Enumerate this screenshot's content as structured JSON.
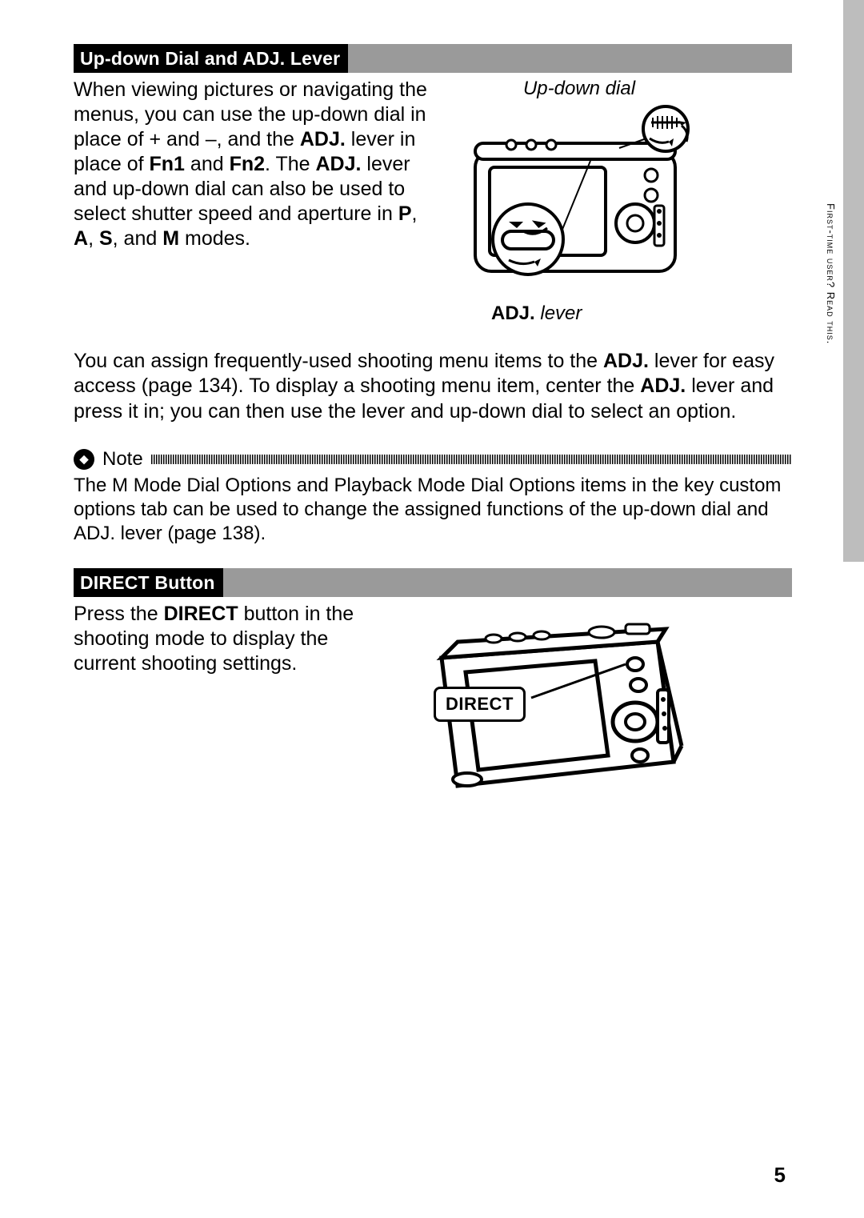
{
  "sidebar": {
    "tab_text": "First-time user? Read this."
  },
  "section1": {
    "title": "Up-down Dial and ADJ. Lever",
    "para1_parts": [
      {
        "t": "When viewing pictures or navigating the menus, you can use the up-down dial in place of + and –, and the ",
        "b": false
      },
      {
        "t": "ADJ.",
        "b": true
      },
      {
        "t": " lever in place of ",
        "b": false
      },
      {
        "t": "Fn1",
        "b": true
      },
      {
        "t": " and ",
        "b": false
      },
      {
        "t": "Fn2",
        "b": true
      },
      {
        "t": ". The ",
        "b": false
      },
      {
        "t": "ADJ.",
        "b": true
      },
      {
        "t": " lever and up-down dial can also be used to select shutter speed and aperture in ",
        "b": false
      },
      {
        "t": "P",
        "b": true
      },
      {
        "t": ", ",
        "b": false
      },
      {
        "t": "A",
        "b": true
      },
      {
        "t": ", ",
        "b": false
      },
      {
        "t": "S",
        "b": true
      },
      {
        "t": ", and ",
        "b": false
      },
      {
        "t": "M",
        "b": true
      },
      {
        "t": " modes.",
        "b": false
      }
    ],
    "diagram_top_label": "Up-down dial",
    "diagram_bottom_bold": "ADJ.",
    "diagram_bottom_ital": " lever",
    "para2_parts": [
      {
        "t": "You can assign frequently-used shooting menu items to the ",
        "b": false
      },
      {
        "t": "ADJ.",
        "b": true
      },
      {
        "t": " lever for easy access (page 134). To display a shooting menu item, center the ",
        "b": false
      },
      {
        "t": "ADJ.",
        "b": true
      },
      {
        "t": " lever and press it in; you can then use the lever and up-down dial to select an option.",
        "b": false
      }
    ]
  },
  "note": {
    "heading": "Note",
    "body_parts": [
      {
        "t": "The ",
        "b": false
      },
      {
        "t": "M Mode Dial Options",
        "b": true
      },
      {
        "t": " and ",
        "b": false
      },
      {
        "t": "Playback Mode Dial Options",
        "b": true
      },
      {
        "t": " items in the key custom options tab can be used to change the assigned functions of the up-down dial and ",
        "b": false
      },
      {
        "t": "ADJ.",
        "b": true
      },
      {
        "t": " lever (page 138).",
        "b": false
      }
    ]
  },
  "section2": {
    "title": "DIRECT Button",
    "para_parts": [
      {
        "t": "Press the ",
        "b": false
      },
      {
        "t": "DIRECT",
        "b": true
      },
      {
        "t": " button in the shooting mode to display the current shooting settings.",
        "b": false
      }
    ],
    "diagram_label": "DIRECT"
  },
  "page_number": "5"
}
